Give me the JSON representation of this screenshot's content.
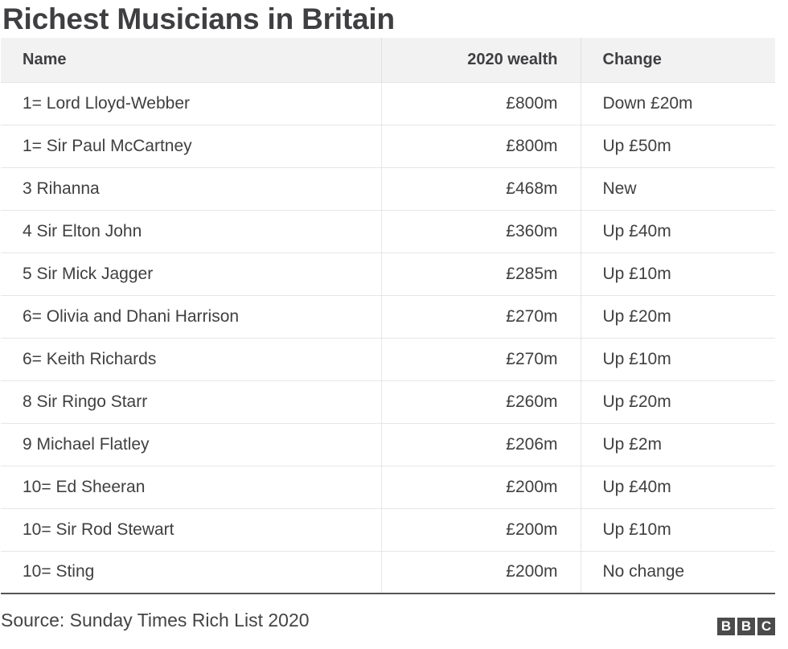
{
  "title": "Richest Musicians in Britain",
  "table": {
    "headers": {
      "name": "Name",
      "wealth": "2020 wealth",
      "change": "Change"
    },
    "rows": [
      {
        "name": "1= Lord Lloyd-Webber",
        "wealth": "£800m",
        "change": "Down £20m"
      },
      {
        "name": "1= Sir Paul McCartney",
        "wealth": "£800m",
        "change": "Up £50m"
      },
      {
        "name": "3 Rihanna",
        "wealth": "£468m",
        "change": "New"
      },
      {
        "name": "4 Sir Elton John",
        "wealth": "£360m",
        "change": "Up £40m"
      },
      {
        "name": "5 Sir Mick Jagger",
        "wealth": "£285m",
        "change": "Up £10m"
      },
      {
        "name": "6= Olivia and Dhani Harrison",
        "wealth": "£270m",
        "change": "Up £20m"
      },
      {
        "name": "6= Keith Richards",
        "wealth": "£270m",
        "change": "Up £10m"
      },
      {
        "name": "8 Sir Ringo Starr",
        "wealth": "£260m",
        "change": "Up £20m"
      },
      {
        "name": "9 Michael Flatley",
        "wealth": "£206m",
        "change": "Up £2m"
      },
      {
        "name": "10= Ed Sheeran",
        "wealth": "£200m",
        "change": "Up £40m"
      },
      {
        "name": "10= Sir Rod Stewart",
        "wealth": "£200m",
        "change": "Up £10m"
      },
      {
        "name": "10= Sting",
        "wealth": "£200m",
        "change": "No change"
      }
    ]
  },
  "source": "Source: Sunday Times Rich List 2020",
  "logo": {
    "letters": [
      "B",
      "B",
      "C"
    ]
  }
}
